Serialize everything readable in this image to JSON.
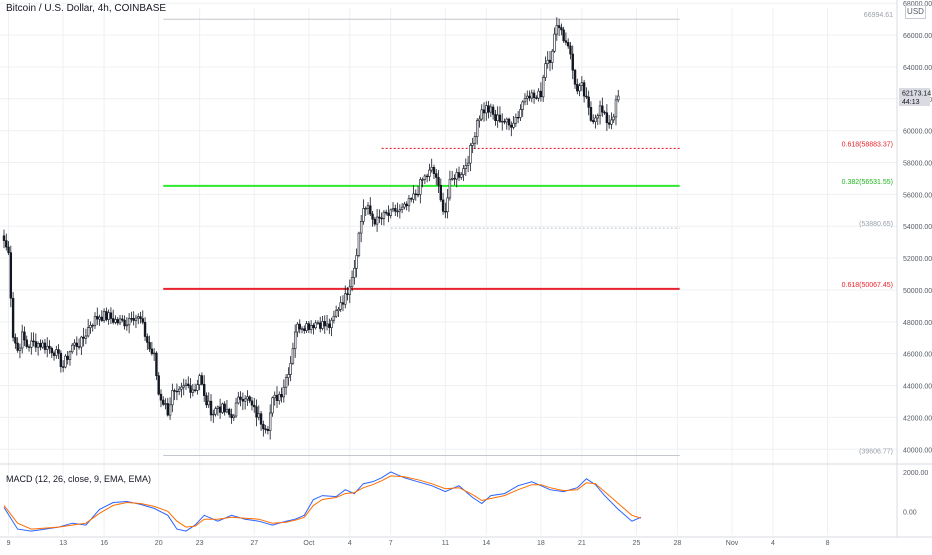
{
  "header": {
    "title": "Bitcoin / U.S. Dollar, 4h, COINBASE",
    "currency": "USD"
  },
  "price": {
    "last": "62173.14",
    "countdown": "44:13"
  },
  "colors": {
    "bull": "#131722",
    "bear": "#131722",
    "green_line": "#2ee82e",
    "red_line": "#e8232d",
    "red_dotted": "#e8232d",
    "gray_line": "#c3c6cc",
    "macd_line": "#2962ff",
    "signal_line": "#ff6d00",
    "grid": "#eef0f3"
  },
  "chart_data": {
    "type": "candlestick",
    "title": "Bitcoin / U.S. Dollar, 4h, COINBASE",
    "x_ticks": [
      {
        "label": "9",
        "t": 2
      },
      {
        "label": "13",
        "t": 26
      },
      {
        "label": "16",
        "t": 44
      },
      {
        "label": "20",
        "t": 68
      },
      {
        "label": "23",
        "t": 86
      },
      {
        "label": "27",
        "t": 110
      },
      {
        "label": "Oct",
        "t": 134
      },
      {
        "label": "4",
        "t": 152
      },
      {
        "label": "7",
        "t": 170
      },
      {
        "label": "11",
        "t": 194
      },
      {
        "label": "14",
        "t": 212
      },
      {
        "label": "18",
        "t": 236
      },
      {
        "label": "21",
        "t": 254
      },
      {
        "label": "25",
        "t": 278
      },
      {
        "label": "28",
        "t": 296
      },
      {
        "label": "Nov",
        "t": 320
      },
      {
        "label": "4",
        "t": 338
      },
      {
        "label": "8",
        "t": 362
      }
    ],
    "y_axis": {
      "min": 39200,
      "max": 67700,
      "ticks": [
        "40000.00",
        "42000.00",
        "44000.00",
        "46000.00",
        "48000.00",
        "50000.00",
        "52000.00",
        "54000.00",
        "56000.00",
        "58000.00",
        "60000.00",
        "62000.00",
        "64000.00",
        "66000.00",
        "68000.00"
      ]
    },
    "macd": {
      "label": "MACD (12, 26, close, 9, EMA, EMA)",
      "y_ticks": [
        "2000.00",
        "0.00"
      ],
      "ymin": -1200,
      "ymax": 2300,
      "macd_line": [
        [
          0,
          200
        ],
        [
          6,
          -900
        ],
        [
          12,
          -1000
        ],
        [
          18,
          -900
        ],
        [
          24,
          -800
        ],
        [
          30,
          -600
        ],
        [
          36,
          -700
        ],
        [
          42,
          100
        ],
        [
          48,
          450
        ],
        [
          54,
          500
        ],
        [
          60,
          350
        ],
        [
          66,
          150
        ],
        [
          72,
          -200
        ],
        [
          76,
          -900
        ],
        [
          80,
          -1000
        ],
        [
          84,
          -700
        ],
        [
          88,
          -200
        ],
        [
          94,
          -500
        ],
        [
          100,
          -200
        ],
        [
          106,
          -400
        ],
        [
          112,
          -500
        ],
        [
          118,
          -700
        ],
        [
          124,
          -500
        ],
        [
          128,
          -400
        ],
        [
          132,
          -200
        ],
        [
          136,
          600
        ],
        [
          140,
          800
        ],
        [
          146,
          750
        ],
        [
          150,
          1100
        ],
        [
          154,
          900
        ],
        [
          158,
          1400
        ],
        [
          162,
          1500
        ],
        [
          166,
          1700
        ],
        [
          170,
          2000
        ],
        [
          176,
          1700
        ],
        [
          182,
          1500
        ],
        [
          188,
          1300
        ],
        [
          194,
          1000
        ],
        [
          200,
          1300
        ],
        [
          206,
          700
        ],
        [
          210,
          400
        ],
        [
          214,
          800
        ],
        [
          220,
          900
        ],
        [
          226,
          1300
        ],
        [
          232,
          1500
        ],
        [
          236,
          1300
        ],
        [
          240,
          1100
        ],
        [
          246,
          1000
        ],
        [
          252,
          1200
        ],
        [
          256,
          1650
        ],
        [
          260,
          1350
        ],
        [
          264,
          800
        ],
        [
          270,
          100
        ],
        [
          276,
          -500
        ],
        [
          280,
          -300
        ]
      ],
      "signal_line": [
        [
          0,
          300
        ],
        [
          6,
          -600
        ],
        [
          12,
          -900
        ],
        [
          18,
          -850
        ],
        [
          24,
          -800
        ],
        [
          30,
          -700
        ],
        [
          36,
          -600
        ],
        [
          42,
          -100
        ],
        [
          48,
          300
        ],
        [
          54,
          450
        ],
        [
          60,
          400
        ],
        [
          66,
          250
        ],
        [
          72,
          0
        ],
        [
          76,
          -500
        ],
        [
          80,
          -800
        ],
        [
          84,
          -750
        ],
        [
          88,
          -400
        ],
        [
          94,
          -400
        ],
        [
          100,
          -300
        ],
        [
          106,
          -350
        ],
        [
          112,
          -400
        ],
        [
          118,
          -600
        ],
        [
          124,
          -550
        ],
        [
          128,
          -450
        ],
        [
          132,
          -300
        ],
        [
          136,
          300
        ],
        [
          140,
          600
        ],
        [
          146,
          700
        ],
        [
          150,
          900
        ],
        [
          154,
          950
        ],
        [
          158,
          1200
        ],
        [
          162,
          1350
        ],
        [
          166,
          1550
        ],
        [
          170,
          1800
        ],
        [
          176,
          1750
        ],
        [
          182,
          1600
        ],
        [
          188,
          1400
        ],
        [
          194,
          1150
        ],
        [
          200,
          1200
        ],
        [
          206,
          850
        ],
        [
          210,
          550
        ],
        [
          214,
          650
        ],
        [
          220,
          800
        ],
        [
          226,
          1100
        ],
        [
          232,
          1350
        ],
        [
          236,
          1350
        ],
        [
          240,
          1200
        ],
        [
          246,
          1050
        ],
        [
          252,
          1100
        ],
        [
          256,
          1450
        ],
        [
          260,
          1400
        ],
        [
          264,
          1000
        ],
        [
          270,
          400
        ],
        [
          276,
          -200
        ],
        [
          280,
          -350
        ]
      ]
    },
    "anchors": [
      [
        0,
        53100
      ],
      [
        2,
        52300
      ],
      [
        4,
        47200
      ],
      [
        6,
        46200
      ],
      [
        8,
        47100
      ],
      [
        10,
        46500
      ],
      [
        14,
        46700
      ],
      [
        18,
        46500
      ],
      [
        22,
        46200
      ],
      [
        26,
        45200
      ],
      [
        30,
        46500
      ],
      [
        34,
        46700
      ],
      [
        38,
        47900
      ],
      [
        42,
        48400
      ],
      [
        46,
        48300
      ],
      [
        50,
        48000
      ],
      [
        54,
        48000
      ],
      [
        56,
        48500
      ],
      [
        60,
        48100
      ],
      [
        64,
        46300
      ],
      [
        66,
        45800
      ],
      [
        68,
        43500
      ],
      [
        70,
        43000
      ],
      [
        72,
        42400
      ],
      [
        74,
        43500
      ],
      [
        76,
        43300
      ],
      [
        80,
        44000
      ],
      [
        84,
        43800
      ],
      [
        86,
        44700
      ],
      [
        88,
        43200
      ],
      [
        90,
        42700
      ],
      [
        92,
        42300
      ],
      [
        94,
        42700
      ],
      [
        96,
        42500
      ],
      [
        100,
        42000
      ],
      [
        102,
        42700
      ],
      [
        104,
        43300
      ],
      [
        106,
        43400
      ],
      [
        108,
        42900
      ],
      [
        110,
        42400
      ],
      [
        114,
        41600
      ],
      [
        116,
        41500
      ],
      [
        118,
        43000
      ],
      [
        120,
        43300
      ],
      [
        122,
        43600
      ],
      [
        124,
        44500
      ],
      [
        126,
        45500
      ],
      [
        128,
        47500
      ],
      [
        130,
        47800
      ],
      [
        134,
        47800
      ],
      [
        138,
        48000
      ],
      [
        142,
        47700
      ],
      [
        144,
        47800
      ],
      [
        146,
        48600
      ],
      [
        148,
        49300
      ],
      [
        150,
        49500
      ],
      [
        152,
        50500
      ],
      [
        154,
        51500
      ],
      [
        156,
        53500
      ],
      [
        158,
        55200
      ],
      [
        160,
        55000
      ],
      [
        162,
        54500
      ],
      [
        164,
        54300
      ],
      [
        166,
        54500
      ],
      [
        168,
        54700
      ],
      [
        170,
        54700
      ],
      [
        172,
        55000
      ],
      [
        174,
        54900
      ],
      [
        176,
        55100
      ],
      [
        178,
        55400
      ],
      [
        180,
        55800
      ],
      [
        182,
        56300
      ],
      [
        184,
        56900
      ],
      [
        186,
        57200
      ],
      [
        188,
        57500
      ],
      [
        190,
        57100
      ],
      [
        192,
        55500
      ],
      [
        194,
        55000
      ],
      [
        196,
        56600
      ],
      [
        198,
        57200
      ],
      [
        200,
        57300
      ],
      [
        202,
        57600
      ],
      [
        204,
        58300
      ],
      [
        206,
        59200
      ],
      [
        208,
        60700
      ],
      [
        210,
        61200
      ],
      [
        212,
        61400
      ],
      [
        214,
        61200
      ],
      [
        216,
        60700
      ],
      [
        218,
        60800
      ],
      [
        220,
        60600
      ],
      [
        222,
        60300
      ],
      [
        224,
        60700
      ],
      [
        226,
        61000
      ],
      [
        228,
        61800
      ],
      [
        230,
        62500
      ],
      [
        232,
        62200
      ],
      [
        234,
        62000
      ],
      [
        236,
        62400
      ],
      [
        238,
        64400
      ],
      [
        240,
        64600
      ],
      [
        242,
        65900
      ],
      [
        244,
        66800
      ],
      [
        246,
        65800
      ],
      [
        248,
        65500
      ],
      [
        250,
        63800
      ],
      [
        252,
        62400
      ],
      [
        254,
        62700
      ],
      [
        256,
        61800
      ],
      [
        258,
        60700
      ],
      [
        260,
        61000
      ],
      [
        262,
        61400
      ],
      [
        264,
        60800
      ],
      [
        266,
        60500
      ],
      [
        268,
        61100
      ],
      [
        270,
        62173
      ]
    ],
    "annotations": [
      {
        "label": "66994.61",
        "price": 66994.61,
        "style": "gray",
        "t0": 70,
        "t1": 297
      },
      {
        "label": "0.618(58883.37)",
        "price": 58883.37,
        "style": "red_dotted",
        "t0": 166,
        "t1": 297
      },
      {
        "label": "0.382(56531.55)",
        "price": 56531.55,
        "style": "green",
        "t0": 70,
        "t1": 297
      },
      {
        "label": "(53880.65)",
        "price": 53880.65,
        "style": "gray_dotted",
        "t0": 170,
        "t1": 297
      },
      {
        "label": "0.618(50067.45)",
        "price": 50067.45,
        "style": "red",
        "t0": 70,
        "t1": 297
      },
      {
        "label": "(39606.77)",
        "price": 39606.77,
        "style": "gray",
        "t0": 70,
        "t1": 297
      }
    ]
  }
}
